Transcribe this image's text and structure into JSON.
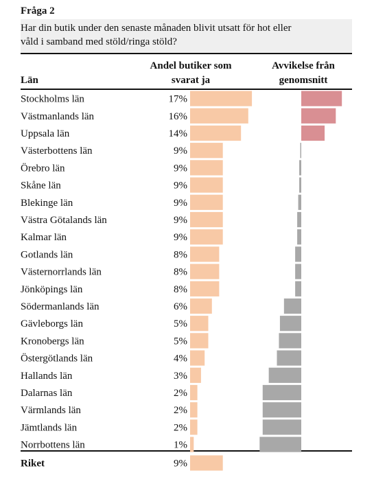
{
  "heading": "Fråga 2",
  "question_line1": "Har din butik under den senaste månaden blivit utsatt för hot eller",
  "question_line2": "våld i samband med stöld/ringa stöld?",
  "chart_data": {
    "type": "table",
    "row_header": "Län",
    "column_headers": [
      [
        "Andel butiker som",
        "svarat ja"
      ],
      [
        "Avvikelse från",
        "genomsnitt"
      ]
    ],
    "rows": [
      {
        "label": "Stockholms län",
        "share": 17,
        "display": "17%",
        "deviation": 8.0
      },
      {
        "label": "Västmanlands län",
        "share": 16,
        "display": "16%",
        "deviation": 6.8
      },
      {
        "label": "Uppsala län",
        "share": 14,
        "display": "14%",
        "deviation": 4.6
      },
      {
        "label": "Västerbottens län",
        "share": 9,
        "display": "9%",
        "deviation": -0.2
      },
      {
        "label": "Örebro län",
        "share": 9,
        "display": "9%",
        "deviation": -0.4
      },
      {
        "label": "Skåne län",
        "share": 9,
        "display": "9%",
        "deviation": -0.4
      },
      {
        "label": "Blekinge län",
        "share": 9,
        "display": "9%",
        "deviation": -0.6
      },
      {
        "label": "Västra Götalands län",
        "share": 9,
        "display": "9%",
        "deviation": -0.8
      },
      {
        "label": "Kalmar län",
        "share": 9,
        "display": "9%",
        "deviation": -0.8
      },
      {
        "label": "Gotlands län",
        "share": 8,
        "display": "8%",
        "deviation": -1.2
      },
      {
        "label": "Västernorrlands län",
        "share": 8,
        "display": "8%",
        "deviation": -1.2
      },
      {
        "label": "Jönköpings län",
        "share": 8,
        "display": "8%",
        "deviation": -1.2
      },
      {
        "label": "Södermanlands län",
        "share": 6,
        "display": "6%",
        "deviation": -3.4
      },
      {
        "label": "Gävleborgs län",
        "share": 5,
        "display": "5%",
        "deviation": -4.2
      },
      {
        "label": "Kronobergs län",
        "share": 5,
        "display": "5%",
        "deviation": -4.4
      },
      {
        "label": "Östergötlands län",
        "share": 4,
        "display": "4%",
        "deviation": -4.8
      },
      {
        "label": "Hallands län",
        "share": 3,
        "display": "3%",
        "deviation": -6.4
      },
      {
        "label": "Dalarnas län",
        "share": 2,
        "display": "2%",
        "deviation": -7.6
      },
      {
        "label": "Värmlands län",
        "share": 2,
        "display": "2%",
        "deviation": -7.6
      },
      {
        "label": "Jämtlands län",
        "share": 2,
        "display": "2%",
        "deviation": -7.6
      },
      {
        "label": "Norrbottens län",
        "share": 1,
        "display": "1%",
        "deviation": -8.2
      }
    ],
    "total": {
      "label": "Riket",
      "share": 9,
      "display": "9%"
    },
    "colors": {
      "share_bar": "#f8c9a6",
      "deviation_positive": "#d98f93",
      "deviation_negative": "#a8a8a8"
    }
  }
}
